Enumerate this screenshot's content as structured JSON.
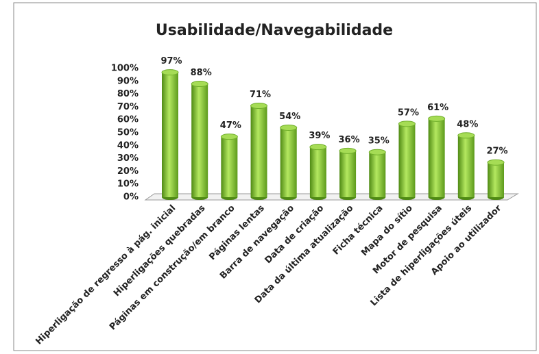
{
  "chart_data": {
    "type": "bar",
    "title": "Usabilidade/Navegabilidade",
    "categories": [
      "Hiperligação de regresso à pág. inicial",
      "Hiperligações quebradas",
      "Páginas em construção/em branco",
      "Páginas lentas",
      "Barra de navegação",
      "Data de criação",
      "Data da última atualização",
      "Ficha técnica",
      "Mapa do sítio",
      "Motor de pesquisa",
      "Lista de hiperligações úteis",
      "Apoio ao utilizador"
    ],
    "values": [
      97,
      88,
      47,
      71,
      54,
      39,
      36,
      35,
      57,
      61,
      48,
      27
    ],
    "value_labels": [
      "97%",
      "88%",
      "47%",
      "71%",
      "54%",
      "39%",
      "36%",
      "35%",
      "57%",
      "61%",
      "48%",
      "27%"
    ],
    "color": "#7cc23a",
    "ylim": [
      0,
      100
    ],
    "yticks": [
      {
        "value": 0,
        "label": "0%"
      },
      {
        "value": 10,
        "label": "10%"
      },
      {
        "value": 20,
        "label": "20%"
      },
      {
        "value": 30,
        "label": "30%"
      },
      {
        "value": 40,
        "label": "40%"
      },
      {
        "value": 50,
        "label": "50%"
      },
      {
        "value": 60,
        "label": "60%"
      },
      {
        "value": 70,
        "label": "70%"
      },
      {
        "value": 80,
        "label": "80%"
      },
      {
        "value": 90,
        "label": "90%"
      },
      {
        "value": 100,
        "label": "100%"
      }
    ],
    "grid": true
  }
}
